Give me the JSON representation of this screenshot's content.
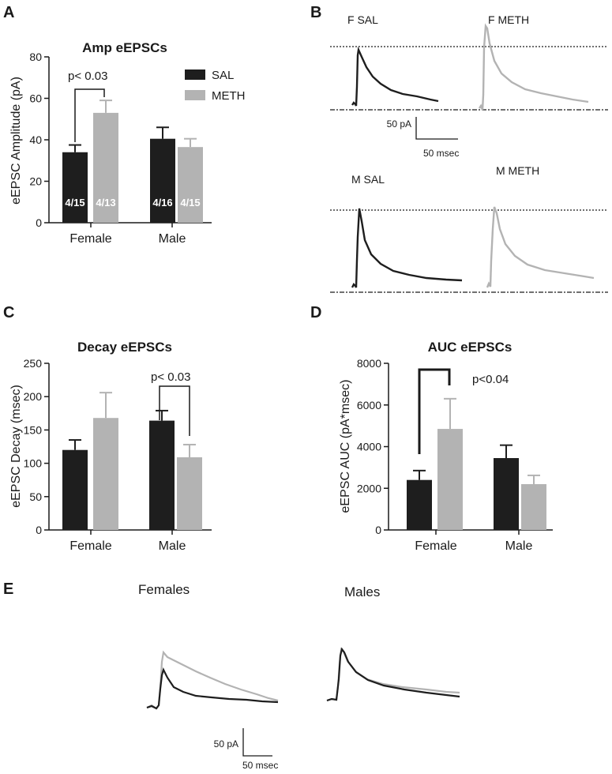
{
  "colors": {
    "sal": "#1e1e1e",
    "meth": "#b3b3b3",
    "axis": "#1a1a1a"
  },
  "panels": {
    "A": {
      "letter": "A",
      "legend": {
        "sal": "SAL",
        "meth": "METH"
      },
      "pvalue": "p< 0.03"
    },
    "B": {
      "letter": "B",
      "trace_labels": [
        "F SAL",
        "F METH",
        "M SAL",
        "M METH"
      ],
      "scale": {
        "y": "50 pA",
        "x": "50 msec"
      }
    },
    "C": {
      "letter": "C",
      "pvalue": "p< 0.03"
    },
    "D": {
      "letter": "D",
      "pvalue": "p<0.04"
    },
    "E": {
      "letter": "E",
      "group_labels": [
        "Females",
        "Males"
      ],
      "scale": {
        "y": "50 pA",
        "x": "50 msec"
      }
    }
  },
  "chart_data": [
    {
      "panel": "A",
      "type": "bar",
      "title": "Amp eEPSCs",
      "xlabel": "",
      "ylabel": "eEPSC Amplitude (pA)",
      "ylim": [
        0,
        80
      ],
      "yticks": [
        0,
        20,
        40,
        60,
        80
      ],
      "categories": [
        "Female",
        "Male"
      ],
      "series": [
        {
          "name": "SAL",
          "values": [
            34,
            40.5
          ],
          "errors": [
            3.5,
            5.5
          ],
          "n_labels": [
            "4/15",
            "4/16"
          ]
        },
        {
          "name": "METH",
          "values": [
            53,
            36.5
          ],
          "errors": [
            6,
            4
          ],
          "n_labels": [
            "4/13",
            "4/15"
          ]
        }
      ],
      "annotation": {
        "text": "p< 0.03",
        "category": "Female"
      }
    },
    {
      "panel": "C",
      "type": "bar",
      "title": "Decay eEPSCs",
      "xlabel": "",
      "ylabel": "eEPSC Decay (msec)",
      "ylim": [
        0,
        250
      ],
      "yticks": [
        0,
        50,
        100,
        150,
        200,
        250
      ],
      "categories": [
        "Female",
        "Male"
      ],
      "series": [
        {
          "name": "SAL",
          "values": [
            120,
            164
          ],
          "errors": [
            15,
            15
          ]
        },
        {
          "name": "METH",
          "values": [
            168,
            109
          ],
          "errors": [
            38,
            19
          ]
        }
      ],
      "annotation": {
        "text": "p< 0.03",
        "category": "Male"
      }
    },
    {
      "panel": "D",
      "type": "bar",
      "title": "AUC eEPSCs",
      "xlabel": "",
      "ylabel": "eEPSC AUC (pA*msec)",
      "ylim": [
        0,
        8000
      ],
      "yticks": [
        0,
        2000,
        4000,
        6000,
        8000
      ],
      "categories": [
        "Female",
        "Male"
      ],
      "series": [
        {
          "name": "SAL",
          "values": [
            2400,
            3450
          ],
          "errors": [
            450,
            620
          ]
        },
        {
          "name": "METH",
          "values": [
            4850,
            2200
          ],
          "errors": [
            1450,
            420
          ]
        }
      ],
      "annotation": {
        "text": "p<0.04",
        "category": "Female"
      }
    }
  ]
}
